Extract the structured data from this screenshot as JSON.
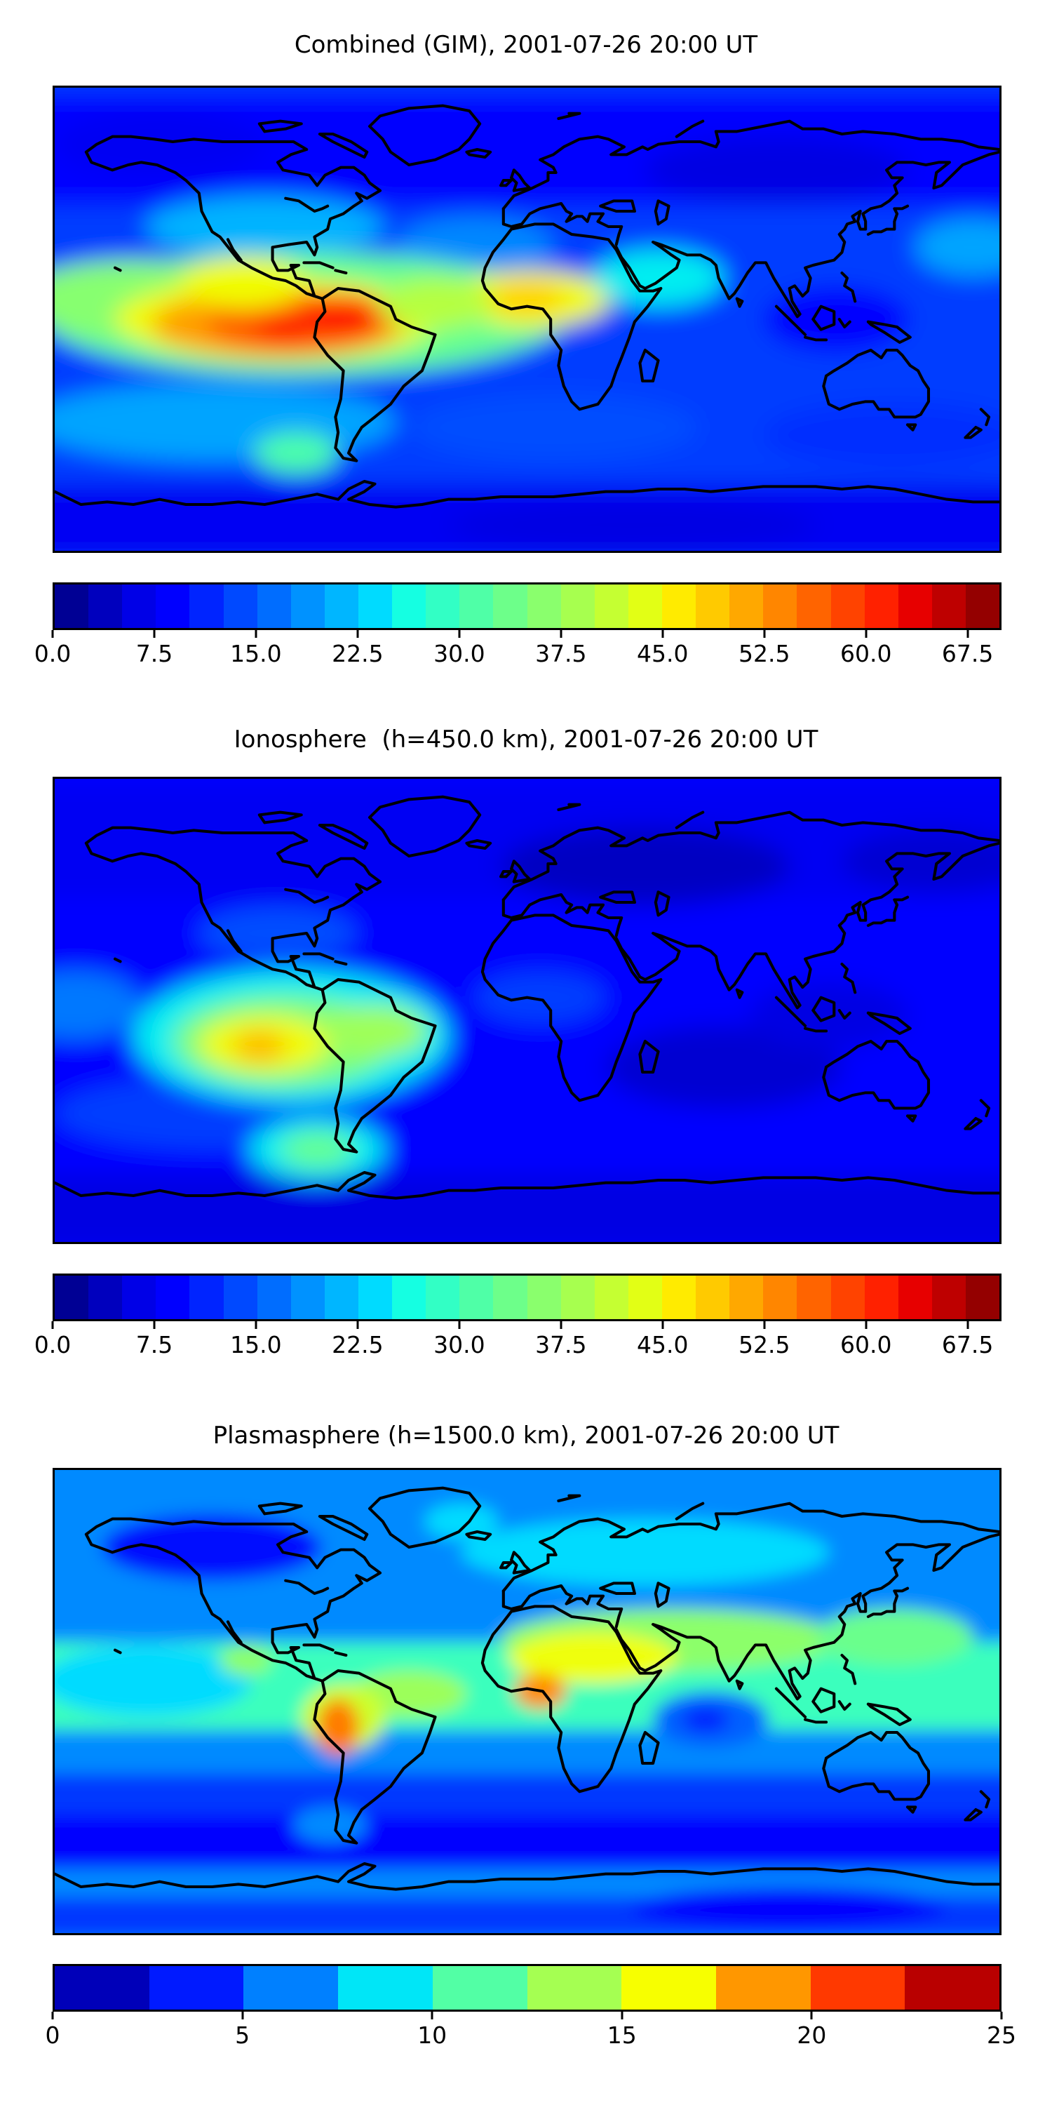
{
  "figure_background": "#ffffff",
  "chart_data": [
    {
      "type": "heatmap",
      "title": "Combined (GIM), 2001-07-26 20:00 UT",
      "map_projection": "equirectangular-world",
      "lon_range": [
        -180,
        180
      ],
      "lat_range": [
        -90,
        90
      ],
      "colormap": "jet",
      "vmin": 0,
      "vmax": 70,
      "contour_step": 2.5,
      "coastline_color": "#000000",
      "colorbar_colors": [
        "#000094",
        "#0000BE",
        "#0000E7",
        "#0000FF",
        "#0024FF",
        "#0049FF",
        "#006DFF",
        "#0092FF",
        "#00B6FF",
        "#00DBFF",
        "#15FFE2",
        "#32FFC5",
        "#4FFFA7",
        "#6DFF8A",
        "#8AFF6D",
        "#A7FF4F",
        "#C5FF32",
        "#E2FF15",
        "#FFEB00",
        "#FFCA00",
        "#FFA800",
        "#FF8600",
        "#FF6400",
        "#FF4300",
        "#FF2100",
        "#E70000",
        "#BE0000",
        "#940000"
      ],
      "tick_values": [
        0,
        7.5,
        15,
        22.5,
        30,
        37.5,
        45,
        52.5,
        60,
        67.5
      ],
      "tick_labels": [
        "0.0",
        "7.5",
        "15.0",
        "22.5",
        "30.0",
        "37.5",
        "45.0",
        "52.5",
        "60.0",
        "67.5"
      ],
      "base_value": 13,
      "features": [
        {
          "name": "north-high-lat-low",
          "kind": "band",
          "lat": 66,
          "rlat": 22,
          "value": 9
        },
        {
          "name": "siberia-min",
          "kind": "blob",
          "lon": 95,
          "lat": 58,
          "rlon": 50,
          "rlat": 13,
          "value": 6
        },
        {
          "name": "alaska-arctic-min",
          "kind": "blob",
          "lon": -140,
          "lat": 68,
          "rlon": 40,
          "rlat": 13,
          "value": 7
        },
        {
          "name": "south-polar-low",
          "kind": "band",
          "lat": -79,
          "rlat": 15,
          "value": 7
        },
        {
          "name": "antarctic-min",
          "kind": "blob",
          "lon": 40,
          "lat": -80,
          "rlon": 70,
          "rlat": 10,
          "value": 6
        },
        {
          "name": "south-midlat-cyan-west",
          "kind": "blob",
          "lon": -120,
          "lat": -40,
          "rlon": 70,
          "rlat": 15,
          "value": 20
        },
        {
          "name": "south-midlat-east",
          "kind": "blob",
          "lon": 10,
          "lat": -42,
          "rlon": 55,
          "rlat": 13,
          "value": 14
        },
        {
          "name": "south-midlat-far-east",
          "kind": "blob",
          "lon": 140,
          "lat": -45,
          "rlon": 50,
          "rlat": 13,
          "value": 12
        },
        {
          "name": "us-midlat-cyan",
          "kind": "blob",
          "lon": -100,
          "lat": 36,
          "rlon": 45,
          "rlat": 12,
          "value": 21
        },
        {
          "name": "atlantic-midlat-cyan",
          "kind": "blob",
          "lon": -20,
          "lat": 28,
          "rlon": 30,
          "rlat": 12,
          "value": 18
        },
        {
          "name": "equatorial-warm-band",
          "kind": "blob",
          "lon": -85,
          "lat": 2,
          "rlon": 100,
          "rlat": 24,
          "value": 33
        },
        {
          "name": "pacific-green-west",
          "kind": "blob",
          "lon": -150,
          "lat": 8,
          "rlon": 45,
          "rlat": 15,
          "value": 36
        },
        {
          "name": "anomaly-yellow",
          "kind": "blob",
          "lon": -95,
          "lat": 0,
          "rlon": 62,
          "rlat": 16,
          "value": 45
        },
        {
          "name": "anomaly-orange",
          "kind": "blob",
          "lon": -95,
          "lat": -2,
          "rlon": 48,
          "rlat": 13,
          "value": 52
        },
        {
          "name": "anomaly-deep-orange",
          "kind": "blob",
          "lon": -88,
          "lat": -1,
          "rlon": 34,
          "rlat": 11,
          "value": 57
        },
        {
          "name": "anomaly-red-core-east",
          "kind": "blob",
          "lon": -70,
          "lat": 2,
          "rlon": 16,
          "rlat": 8,
          "value": 62
        },
        {
          "name": "anomaly-red-core-west",
          "kind": "blob",
          "lon": -92,
          "lat": -3,
          "rlon": 12,
          "rlat": 6,
          "value": 61
        },
        {
          "name": "baja-yellow-arm",
          "kind": "blob",
          "lon": -108,
          "lat": 14,
          "rlon": 24,
          "rlat": 10,
          "value": 45
        },
        {
          "name": "africa-orange",
          "kind": "blob",
          "lon": 2,
          "lat": 8,
          "rlon": 30,
          "rlat": 11,
          "value": 45
        },
        {
          "name": "africa-core",
          "kind": "blob",
          "lon": 0,
          "lat": 8,
          "rlon": 14,
          "rlat": 7,
          "value": 48
        },
        {
          "name": "atlantic-bridge",
          "kind": "blob",
          "lon": -35,
          "lat": 6,
          "rlon": 22,
          "rlat": 10,
          "value": 40
        },
        {
          "name": "mideast-green",
          "kind": "blob",
          "lon": 50,
          "lat": 16,
          "rlon": 25,
          "rlat": 11,
          "value": 25
        },
        {
          "name": "se-asia-min",
          "kind": "blob",
          "lon": 118,
          "lat": 0,
          "rlon": 28,
          "rlat": 13,
          "value": 8
        },
        {
          "name": "west-pacific-cyan",
          "kind": "blob",
          "lon": 170,
          "lat": 28,
          "rlon": 22,
          "rlat": 11,
          "value": 20
        },
        {
          "name": "south-america-tip-green",
          "kind": "blob",
          "lon": -88,
          "lat": -52,
          "rlon": 16,
          "rlat": 8,
          "value": 31
        }
      ]
    },
    {
      "type": "heatmap",
      "title": "Ionosphere  (h=450.0 km), 2001-07-26 20:00 UT",
      "map_projection": "equirectangular-world",
      "lon_range": [
        -180,
        180
      ],
      "lat_range": [
        -90,
        90
      ],
      "colormap": "jet",
      "vmin": 0,
      "vmax": 70,
      "contour_step": 2.5,
      "coastline_color": "#000000",
      "colorbar_colors": [
        "#000094",
        "#0000BE",
        "#0000E7",
        "#0000FF",
        "#0024FF",
        "#0049FF",
        "#006DFF",
        "#0092FF",
        "#00B6FF",
        "#00DBFF",
        "#15FFE2",
        "#32FFC5",
        "#4FFFA7",
        "#6DFF8A",
        "#8AFF6D",
        "#A7FF4F",
        "#C5FF32",
        "#E2FF15",
        "#FFEB00",
        "#FFCA00",
        "#FFA800",
        "#FF8600",
        "#FF6400",
        "#FF4300",
        "#FF2100",
        "#E70000",
        "#BE0000",
        "#940000"
      ],
      "tick_values": [
        0,
        7.5,
        15,
        22.5,
        30,
        37.5,
        45,
        52.5,
        60,
        67.5
      ],
      "tick_labels": [
        "0.0",
        "7.5",
        "15.0",
        "22.5",
        "30.0",
        "37.5",
        "45.0",
        "52.5",
        "60.0",
        "67.5"
      ],
      "base_value": 9,
      "features": [
        {
          "name": "north-high-lat-low",
          "kind": "band",
          "lat": 66,
          "rlat": 22,
          "value": 7
        },
        {
          "name": "europe-russia-min",
          "kind": "blob",
          "lon": 45,
          "lat": 56,
          "rlon": 55,
          "rlat": 15,
          "value": 4
        },
        {
          "name": "npacific-min",
          "kind": "blob",
          "lon": 155,
          "lat": 58,
          "rlon": 35,
          "rlat": 12,
          "value": 5
        },
        {
          "name": "indian-ocean-min",
          "kind": "blob",
          "lon": 75,
          "lat": -22,
          "rlon": 45,
          "rlat": 16,
          "value": 5
        },
        {
          "name": "se-asia-min",
          "kind": "blob",
          "lon": 115,
          "lat": -2,
          "rlon": 30,
          "rlat": 13,
          "value": 6
        },
        {
          "name": "south-polar-low",
          "kind": "band",
          "lat": -79,
          "rlat": 15,
          "value": 6
        },
        {
          "name": "south-pacific-cyan",
          "kind": "blob",
          "lon": -120,
          "lat": -40,
          "rlon": 60,
          "rlat": 14,
          "value": 13
        },
        {
          "name": "na-midlat",
          "kind": "blob",
          "lon": -95,
          "lat": 30,
          "rlon": 30,
          "rlat": 10,
          "value": 14
        },
        {
          "name": "west-equatorial-cyan",
          "kind": "blob",
          "lon": -172,
          "lat": 2,
          "rlon": 25,
          "rlat": 13,
          "value": 17
        },
        {
          "name": "africa-mild",
          "kind": "blob",
          "lon": 5,
          "lat": 5,
          "rlon": 25,
          "rlat": 10,
          "value": 13
        },
        {
          "name": "anomaly-green",
          "kind": "blob",
          "lon": -90,
          "lat": -10,
          "rlon": 60,
          "rlat": 26,
          "value": 25
        },
        {
          "name": "anomaly-yellow",
          "kind": "blob",
          "lon": -93,
          "lat": -12,
          "rlon": 42,
          "rlat": 18,
          "value": 35
        },
        {
          "name": "anomaly-deep-yellow",
          "kind": "blob",
          "lon": -100,
          "lat": -13,
          "rlon": 25,
          "rlat": 11,
          "value": 45
        },
        {
          "name": "anomaly-orange-core",
          "kind": "blob",
          "lon": -102,
          "lat": -14,
          "rlon": 10,
          "rlat": 6,
          "value": 50
        },
        {
          "name": "brazil-yellow",
          "kind": "blob",
          "lon": -58,
          "lat": -8,
          "rlon": 20,
          "rlat": 10,
          "value": 38
        },
        {
          "name": "tip-secondary-halo",
          "kind": "blob",
          "lon": -80,
          "lat": -54,
          "rlon": 26,
          "rlat": 12,
          "value": 25
        },
        {
          "name": "tip-secondary-core",
          "kind": "blob",
          "lon": -80,
          "lat": -54,
          "rlon": 14,
          "rlat": 7,
          "value": 33
        }
      ]
    },
    {
      "type": "heatmap",
      "title": "Plasmasphere (h=1500.0 km), 2001-07-26 20:00 UT",
      "map_projection": "equirectangular-world",
      "lon_range": [
        -180,
        180
      ],
      "lat_range": [
        -90,
        90
      ],
      "colormap": "jet",
      "vmin": 0,
      "vmax": 25,
      "contour_step": 2.5,
      "coastline_color": "#000000",
      "colorbar_colors": [
        "#0000B9",
        "#001AFF",
        "#0080FF",
        "#00E6F7",
        "#52FFA5",
        "#A5FF52",
        "#F7FF00",
        "#FF9700",
        "#FF3900",
        "#B90000"
      ],
      "tick_values": [
        0,
        5,
        10,
        15,
        20,
        25
      ],
      "tick_labels": [
        "0",
        "5",
        "10",
        "15",
        "20",
        "25"
      ],
      "base_value": 6.5,
      "features": [
        {
          "name": "eurasia-top-cyan",
          "kind": "blob",
          "lon": 45,
          "lat": 58,
          "rlon": 70,
          "rlat": 13,
          "value": 8.5
        },
        {
          "name": "greenland-east-cyan",
          "kind": "blob",
          "lon": -25,
          "lat": 70,
          "rlon": 14,
          "rlat": 7,
          "value": 8.5
        },
        {
          "name": "canada-min",
          "kind": "blob",
          "lon": -120,
          "lat": 60,
          "rlon": 42,
          "rlat": 13,
          "value": 3.5
        },
        {
          "name": "south-navy-belt",
          "kind": "band",
          "lat": -52,
          "rlat": 13,
          "value": 3
        },
        {
          "name": "antarctic-lighter-band",
          "kind": "band",
          "lat": -84,
          "rlat": 8,
          "value": 4.5
        },
        {
          "name": "antarctic-deep",
          "kind": "blob",
          "lon": 100,
          "lat": -80,
          "rlon": 60,
          "rlat": 8,
          "value": 3
        },
        {
          "name": "south-midlat-blue",
          "kind": "band",
          "lat": -36,
          "rlat": 8,
          "value": 4.5
        },
        {
          "name": "chile-tip-cyan",
          "kind": "blob",
          "lon": -75,
          "lat": -48,
          "rlon": 14,
          "rlat": 7,
          "value": 6.5
        },
        {
          "name": "equatorial-green-band",
          "kind": "band",
          "lat": 6,
          "rlat": 17,
          "value": 10.5
        },
        {
          "name": "pacific-cyan-west",
          "kind": "blob",
          "lon": -145,
          "lat": 8,
          "rlon": 40,
          "rlat": 14,
          "value": 8.5
        },
        {
          "name": "asia-yellowgreen-band",
          "kind": "blob",
          "lon": 55,
          "lat": 24,
          "rlon": 65,
          "rlat": 12,
          "value": 13
        },
        {
          "name": "east-asia-green",
          "kind": "blob",
          "lon": 140,
          "lat": 25,
          "rlon": 30,
          "rlat": 11,
          "value": 12
        },
        {
          "name": "nafrica-arabia-yellow",
          "kind": "blob",
          "lon": 25,
          "lat": 17,
          "rlon": 32,
          "rlat": 10,
          "value": 16
        },
        {
          "name": "atlantic-yellowgreen",
          "kind": "blob",
          "lon": -45,
          "lat": 3,
          "rlon": 22,
          "rlat": 9,
          "value": 13.5
        },
        {
          "name": "wafrica-orange",
          "kind": "blob",
          "lon": 5,
          "lat": 4,
          "rlon": 10,
          "rlat": 7,
          "value": 19
        },
        {
          "name": "peru-yellow-halo",
          "kind": "blob",
          "lon": -70,
          "lat": -6,
          "rlon": 16,
          "rlat": 13,
          "value": 15
        },
        {
          "name": "peru-orange-core",
          "kind": "blob",
          "lon": -72,
          "lat": -10,
          "rlon": 8,
          "rlat": 11,
          "value": 19.5
        },
        {
          "name": "indian-ocean-dip",
          "kind": "blob",
          "lon": 70,
          "lat": -7,
          "rlon": 22,
          "rlat": 11,
          "value": 5.5
        },
        {
          "name": "indian-ocean-dip-core",
          "kind": "blob",
          "lon": 68,
          "lat": -7,
          "rlon": 9,
          "rlat": 5,
          "value": 4
        },
        {
          "name": "mexico-green-spot",
          "kind": "blob",
          "lon": -107,
          "lat": 16,
          "rlon": 10,
          "rlat": 6,
          "value": 13
        }
      ]
    }
  ]
}
